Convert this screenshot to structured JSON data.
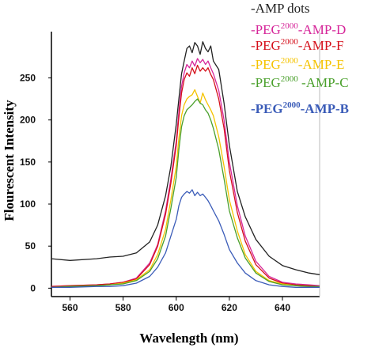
{
  "chart_data": {
    "type": "line",
    "xlabel": "Wavelength (nm)",
    "ylabel": "Flourescent Intensity",
    "xlim": [
      553,
      654
    ],
    "ylim": [
      -10,
      305
    ],
    "x_ticks": [
      560,
      580,
      600,
      620,
      640
    ],
    "y_ticks": [
      0,
      50,
      100,
      150,
      200,
      250
    ],
    "grid": false,
    "legend_position": "top-right",
    "x": [
      553,
      560,
      570,
      575,
      580,
      585,
      590,
      593,
      596,
      598,
      600,
      601,
      602,
      603,
      604,
      605,
      606,
      607,
      608,
      609,
      610,
      611,
      612,
      613,
      614,
      616,
      618,
      620,
      623,
      626,
      630,
      635,
      640,
      645,
      650,
      654
    ],
    "series": [
      {
        "name": "-AMP dots",
        "legend_parts": [
          "-AMP dots"
        ],
        "color": "#222222",
        "values": [
          35,
          33,
          35,
          37,
          38,
          42,
          55,
          75,
          110,
          145,
          195,
          225,
          255,
          270,
          285,
          288,
          280,
          292,
          288,
          278,
          293,
          285,
          281,
          288,
          270,
          260,
          220,
          170,
          115,
          85,
          58,
          38,
          27,
          22,
          18,
          16
        ]
      },
      {
        "name": "-PEG2000-AMP-D",
        "legend_parts": [
          "-PEG",
          "2000",
          "-AMP-D"
        ],
        "color": "#d6279a",
        "values": [
          2,
          3,
          4,
          5,
          7,
          12,
          30,
          52,
          92,
          130,
          175,
          210,
          240,
          256,
          266,
          262,
          270,
          264,
          273,
          268,
          272,
          266,
          270,
          262,
          255,
          235,
          200,
          150,
          98,
          62,
          32,
          14,
          7,
          5,
          4,
          3
        ]
      },
      {
        "name": "-PEG2000-AMP-F",
        "legend_parts": [
          "-PEG",
          "2000",
          "-AMP-F"
        ],
        "color": "#d5101b",
        "values": [
          2,
          3,
          4,
          5,
          7,
          11,
          28,
          50,
          88,
          125,
          170,
          203,
          232,
          248,
          256,
          252,
          262,
          255,
          265,
          258,
          262,
          258,
          262,
          254,
          248,
          225,
          190,
          140,
          90,
          56,
          28,
          12,
          6,
          4,
          3,
          2
        ]
      },
      {
        "name": "-PEG2000-AMP-E",
        "legend_parts": [
          "-PEG",
          "2000",
          "-AMP-E"
        ],
        "color": "#f5c300",
        "values": [
          1,
          2,
          3,
          4,
          6,
          10,
          22,
          40,
          70,
          105,
          145,
          178,
          205,
          218,
          225,
          228,
          230,
          236,
          228,
          220,
          232,
          224,
          218,
          212,
          205,
          180,
          145,
          105,
          68,
          40,
          20,
          9,
          5,
          3,
          2,
          2
        ]
      },
      {
        "name": "-PEG2000-AMP-C",
        "legend_parts": [
          "-PEG",
          "2000",
          " -AMP-C"
        ],
        "color": "#4aa02c",
        "values": [
          1,
          2,
          3,
          4,
          5,
          9,
          20,
          35,
          62,
          95,
          132,
          165,
          192,
          205,
          212,
          215,
          218,
          222,
          225,
          220,
          218,
          212,
          208,
          200,
          190,
          165,
          130,
          92,
          60,
          36,
          18,
          8,
          4,
          3,
          2,
          2
        ]
      },
      {
        "name": "-PEG2000-AMP-B",
        "legend_parts": [
          "-PEG",
          "2000",
          "-AMP-B"
        ],
        "color": "#3b5cb8",
        "values": [
          1,
          1,
          2,
          2,
          3,
          6,
          14,
          25,
          42,
          62,
          82,
          98,
          108,
          112,
          115,
          113,
          117,
          110,
          114,
          110,
          112,
          108,
          104,
          98,
          92,
          80,
          64,
          46,
          30,
          18,
          9,
          4,
          2,
          1,
          1,
          1
        ]
      }
    ]
  }
}
